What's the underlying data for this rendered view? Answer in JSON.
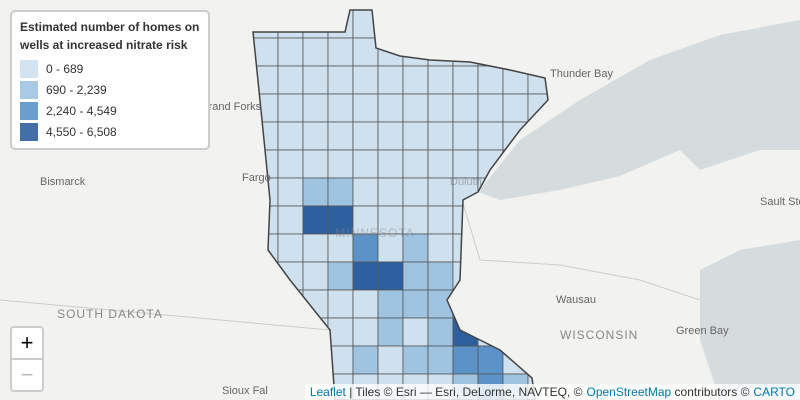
{
  "legend": {
    "title": "Estimated number of homes on wells at increased nitrate risk",
    "items": [
      {
        "label": "0 - 689",
        "color": "#cfe0ee"
      },
      {
        "label": "690 - 2,239",
        "color": "#9ec4e2"
      },
      {
        "label": "2,240 - 4,549",
        "color": "#5b93c9"
      },
      {
        "label": "4,550 - 6,508",
        "color": "#2e5f9e"
      }
    ]
  },
  "places": [
    {
      "label": "Thunder Bay"
    },
    {
      "label": "Grand Forks"
    },
    {
      "label": "Bismarck"
    },
    {
      "label": "Fargo"
    },
    {
      "label": "Sault Ste"
    },
    {
      "label": "Wausau"
    },
    {
      "label": "WISCONSIN"
    },
    {
      "label": "SOUTH DAKOTA"
    },
    {
      "label": "Green Bay"
    },
    {
      "label": "Sioux Fal"
    },
    {
      "label": "MINNESOTA"
    },
    {
      "label": "Duluth"
    }
  ],
  "zoom": {
    "in": "+",
    "out": "−"
  },
  "attribution": {
    "leaflet": "Leaflet",
    "tiles": "| Tiles © Esri — Esri, DeLorme, NAVTEQ, ©",
    "osm": "OpenStreetMap",
    "contrib": "contributors ©",
    "carto": "CARTO"
  }
}
